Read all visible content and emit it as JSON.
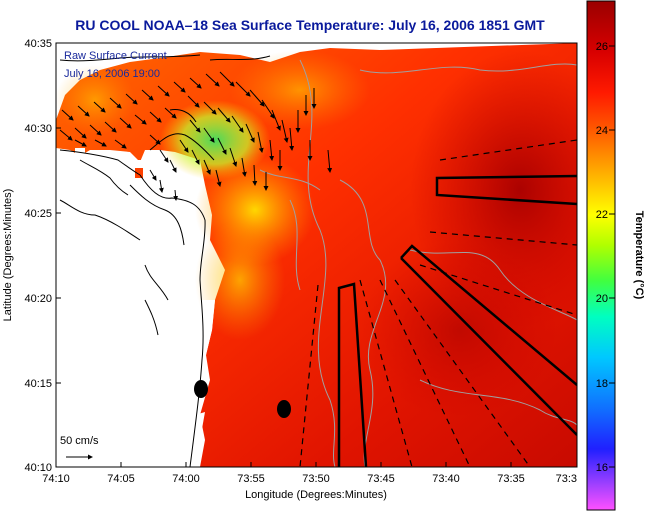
{
  "title": "RU COOL  NOAA–18  Sea Surface Temperature:  July 16, 2006 1851 GMT",
  "legend": {
    "line1": "Raw Surface Current",
    "line2": "July 16, 2006 19:00"
  },
  "scale_label": "50 cm/s",
  "x_axis": {
    "label": "Longitude (Degrees:Minutes)",
    "ticks": [
      "74:10",
      "74:05",
      "74:00",
      "73:55",
      "73:50",
      "73:45",
      "73:40",
      "73:35",
      "73:3"
    ]
  },
  "y_axis": {
    "label": "Latitude (Degrees:Minutes)",
    "ticks": [
      "40:35",
      "40:30",
      "40:25",
      "40:20",
      "40:15",
      "40:10"
    ]
  },
  "colorbar": {
    "label": "Temperature (°C)",
    "ticks": [
      "26",
      "24",
      "22",
      "20",
      "18",
      "16"
    ],
    "colors": [
      "#ff50ff",
      "#a040ff",
      "#2020ff",
      "#1070ff",
      "#00c8ff",
      "#00ffc0",
      "#40ff40",
      "#b0ff00",
      "#ffff00",
      "#ffb000",
      "#ff6000",
      "#ff1a00",
      "#d80000",
      "#9a0000"
    ]
  },
  "colors": {
    "title": "#0a1a9c",
    "warm": "#ff3c00",
    "hot": "#c40000",
    "coastline": "#000000",
    "bathymetry": "#a0a0a0"
  }
}
